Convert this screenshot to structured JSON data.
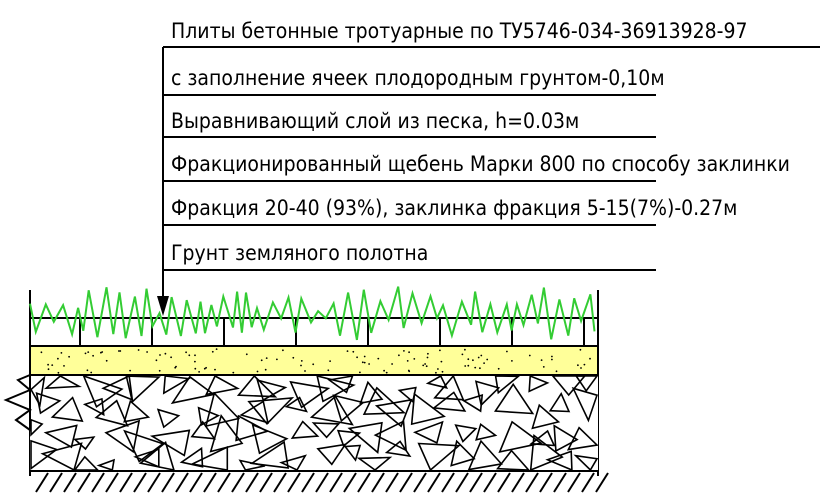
{
  "layers": [
    {
      "label": "Плиты бетонные тротуарные по ТУ5746-034-36913928-97"
    },
    {
      "label": "с заполнение ячеек плодородным грунтом-0,10м"
    },
    {
      "label": "Выравнивающий слой из песка, h=0.03м"
    },
    {
      "label": "Фракционированный щебень Марки 800 по способу заклинки"
    },
    {
      "label": "Фракция 20-40 (93%), заклинка фракция 5-15(7%)-0.27м"
    },
    {
      "label": "Грунт земляного полотна"
    }
  ],
  "colors": {
    "grass": "#33cc33",
    "sand": "#ffff99",
    "line": "#000000"
  }
}
